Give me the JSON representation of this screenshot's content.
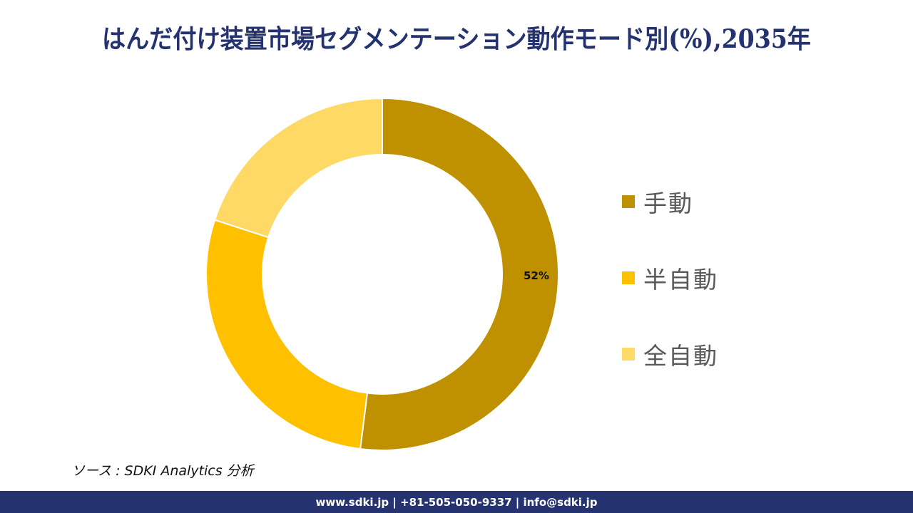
{
  "title": "はんだ付け装置市場セグメンテーション動作モード別(%),2035年",
  "chart_data": {
    "type": "pie",
    "subtype": "donut",
    "title": "はんだ付け装置市場セグメンテーション動作モード別(%),2035年",
    "categories": [
      "手動",
      "半自動",
      "全自動"
    ],
    "values": [
      52,
      28,
      20
    ],
    "colors": [
      "#BF9000",
      "#FFC000",
      "#FFD966"
    ],
    "data_labels": [
      "52%",
      "",
      ""
    ],
    "legend_position": "right",
    "start_angle_deg": 0,
    "direction": "clockwise"
  },
  "data_label": "52%",
  "legend": [
    {
      "label": "手動",
      "color": "#BF9000"
    },
    {
      "label": "半自動",
      "color": "#FFC000"
    },
    {
      "label": "全自動",
      "color": "#FFD966"
    }
  ],
  "source": "ソース : SDKI Analytics  分析",
  "footer": "www.sdki.jp | +81-505-050-9337 | info@sdki.jp"
}
